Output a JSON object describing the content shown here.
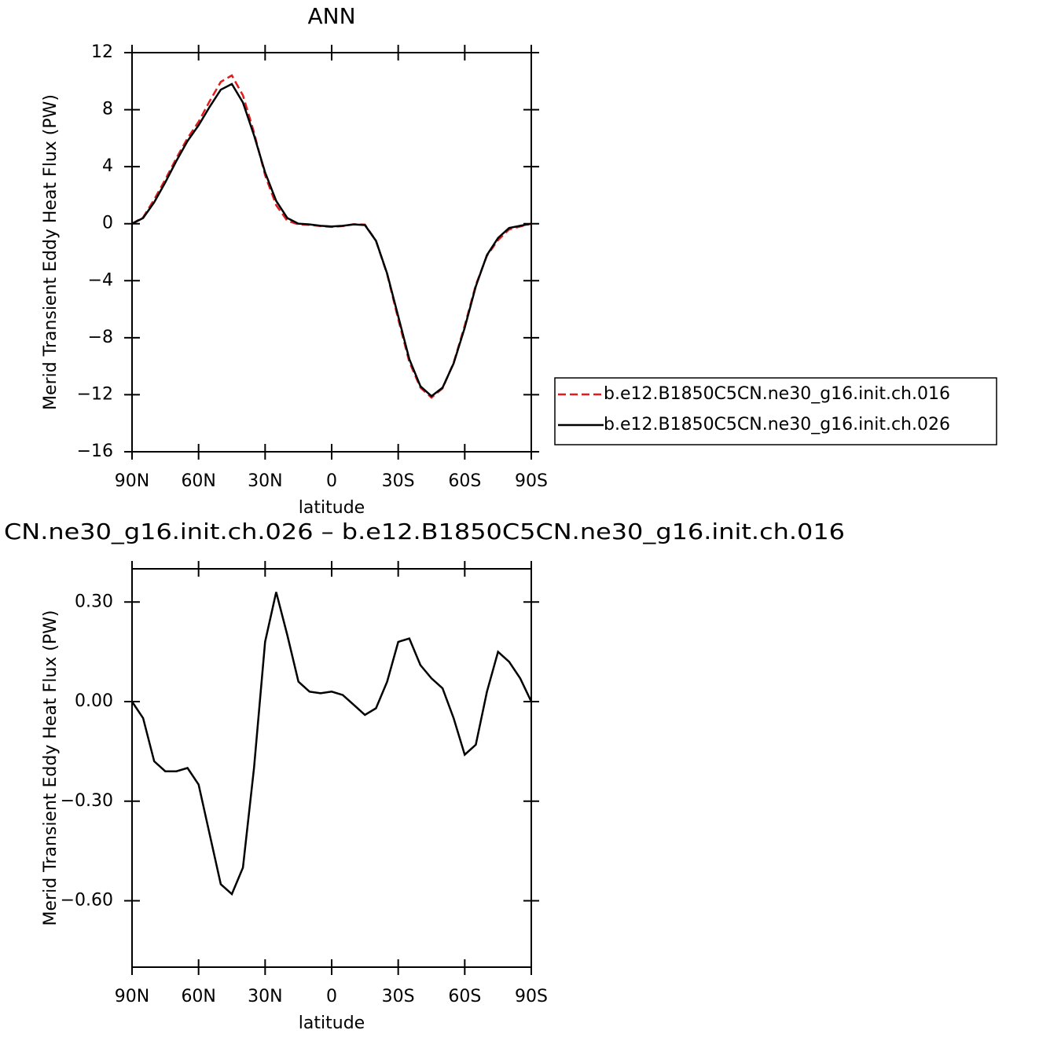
{
  "chart_data": [
    {
      "type": "line",
      "title": "ANN",
      "xlabel": "latitude",
      "ylabel": "Merid Transient Eddy Heat Flux (PW)",
      "x": [
        90,
        85,
        80,
        75,
        70,
        65,
        60,
        55,
        50,
        45,
        40,
        35,
        30,
        25,
        20,
        15,
        10,
        5,
        0,
        -5,
        -10,
        -15,
        -20,
        -25,
        -30,
        -35,
        -40,
        -45,
        -50,
        -55,
        -60,
        -65,
        -70,
        -75,
        -80,
        -85,
        -90
      ],
      "series": [
        {
          "name": "b.e12.B1850C5CN.ne30_g16.init.ch.016",
          "color": "#e41a1c",
          "linestyle": "dashed",
          "values": [
            0,
            0.45,
            1.7,
            3.1,
            4.6,
            6.0,
            7.15,
            8.6,
            9.95,
            10.4,
            9.0,
            6.4,
            3.4,
            1.3,
            0.2,
            -0.05,
            -0.08,
            -0.17,
            -0.23,
            -0.17,
            -0.04,
            -0.06,
            -1.2,
            -3.55,
            -6.7,
            -9.7,
            -11.5,
            -12.2,
            -11.55,
            -9.75,
            -7.15,
            -4.3,
            -2.25,
            -1.15,
            -0.4,
            -0.2,
            0
          ]
        },
        {
          "name": "b.e12.B1850C5CN.ne30_g16.init.ch.026",
          "color": "#000000",
          "linestyle": "solid",
          "values": [
            0,
            0.4,
            1.5,
            2.9,
            4.4,
            5.8,
            6.9,
            8.2,
            9.4,
            9.8,
            8.5,
            6.2,
            3.6,
            1.6,
            0.4,
            0.0,
            -0.05,
            -0.15,
            -0.2,
            -0.15,
            -0.05,
            -0.1,
            -1.2,
            -3.5,
            -6.5,
            -9.5,
            -11.4,
            -12.1,
            -11.5,
            -9.8,
            -7.3,
            -4.4,
            -2.2,
            -1.0,
            -0.3,
            -0.15,
            0
          ]
        }
      ],
      "xlim": [
        90,
        -90
      ],
      "xticks": [
        {
          "value": 90,
          "label": "90N"
        },
        {
          "value": 60,
          "label": "60N"
        },
        {
          "value": 30,
          "label": "30N"
        },
        0,
        {
          "value": -30,
          "label": "30S"
        },
        {
          "value": -60,
          "label": "60S"
        },
        {
          "value": -90,
          "label": "90S"
        }
      ],
      "ylim": [
        -16,
        12
      ],
      "yticks": [
        12,
        8,
        4,
        0,
        {
          "value": -4,
          "label": "−4"
        },
        {
          "value": -8,
          "label": "−8"
        },
        {
          "value": -12,
          "label": "−12"
        },
        {
          "value": -16,
          "label": "−16"
        }
      ],
      "legend": "right"
    },
    {
      "type": "line",
      "title": "CN.ne30_g16.init.ch.026 – b.e12.B1850C5CN.ne30_g16.init.ch.016",
      "xlabel": "latitude",
      "ylabel": "Merid Transient Eddy Heat Flux (PW)",
      "x": [
        90,
        85,
        80,
        75,
        70,
        65,
        60,
        55,
        50,
        45,
        40,
        35,
        30,
        25,
        20,
        15,
        10,
        5,
        0,
        -5,
        -10,
        -15,
        -20,
        -25,
        -30,
        -35,
        -40,
        -45,
        -50,
        -55,
        -60,
        -65,
        -70,
        -75,
        -80,
        -85,
        -90
      ],
      "series": [
        {
          "color": "#000000",
          "linestyle": "solid",
          "values": [
            0,
            -0.05,
            -0.18,
            -0.21,
            -0.21,
            -0.2,
            -0.25,
            -0.4,
            -0.55,
            -0.58,
            -0.5,
            -0.2,
            0.18,
            0.33,
            0.2,
            0.06,
            0.03,
            0.025,
            0.03,
            0.02,
            -0.01,
            -0.04,
            -0.02,
            0.06,
            0.18,
            0.19,
            0.11,
            0.07,
            0.04,
            -0.05,
            -0.16,
            -0.13,
            0.03,
            0.15,
            0.12,
            0.07,
            0
          ]
        }
      ],
      "xlim": [
        90,
        -90
      ],
      "xticks": [
        {
          "value": 90,
          "label": "90N"
        },
        {
          "value": 60,
          "label": "60N"
        },
        {
          "value": 30,
          "label": "30N"
        },
        0,
        {
          "value": -30,
          "label": "30S"
        },
        {
          "value": -60,
          "label": "60S"
        },
        {
          "value": -90,
          "label": "90S"
        }
      ],
      "ylim": [
        -0.8,
        0.4
      ],
      "yticks": [
        {
          "value": 0.3,
          "label": "0.30"
        },
        {
          "value": 0,
          "label": "0.00"
        },
        {
          "value": -0.3,
          "label": "−0.30"
        },
        {
          "value": -0.6,
          "label": "−0.60"
        }
      ]
    }
  ]
}
